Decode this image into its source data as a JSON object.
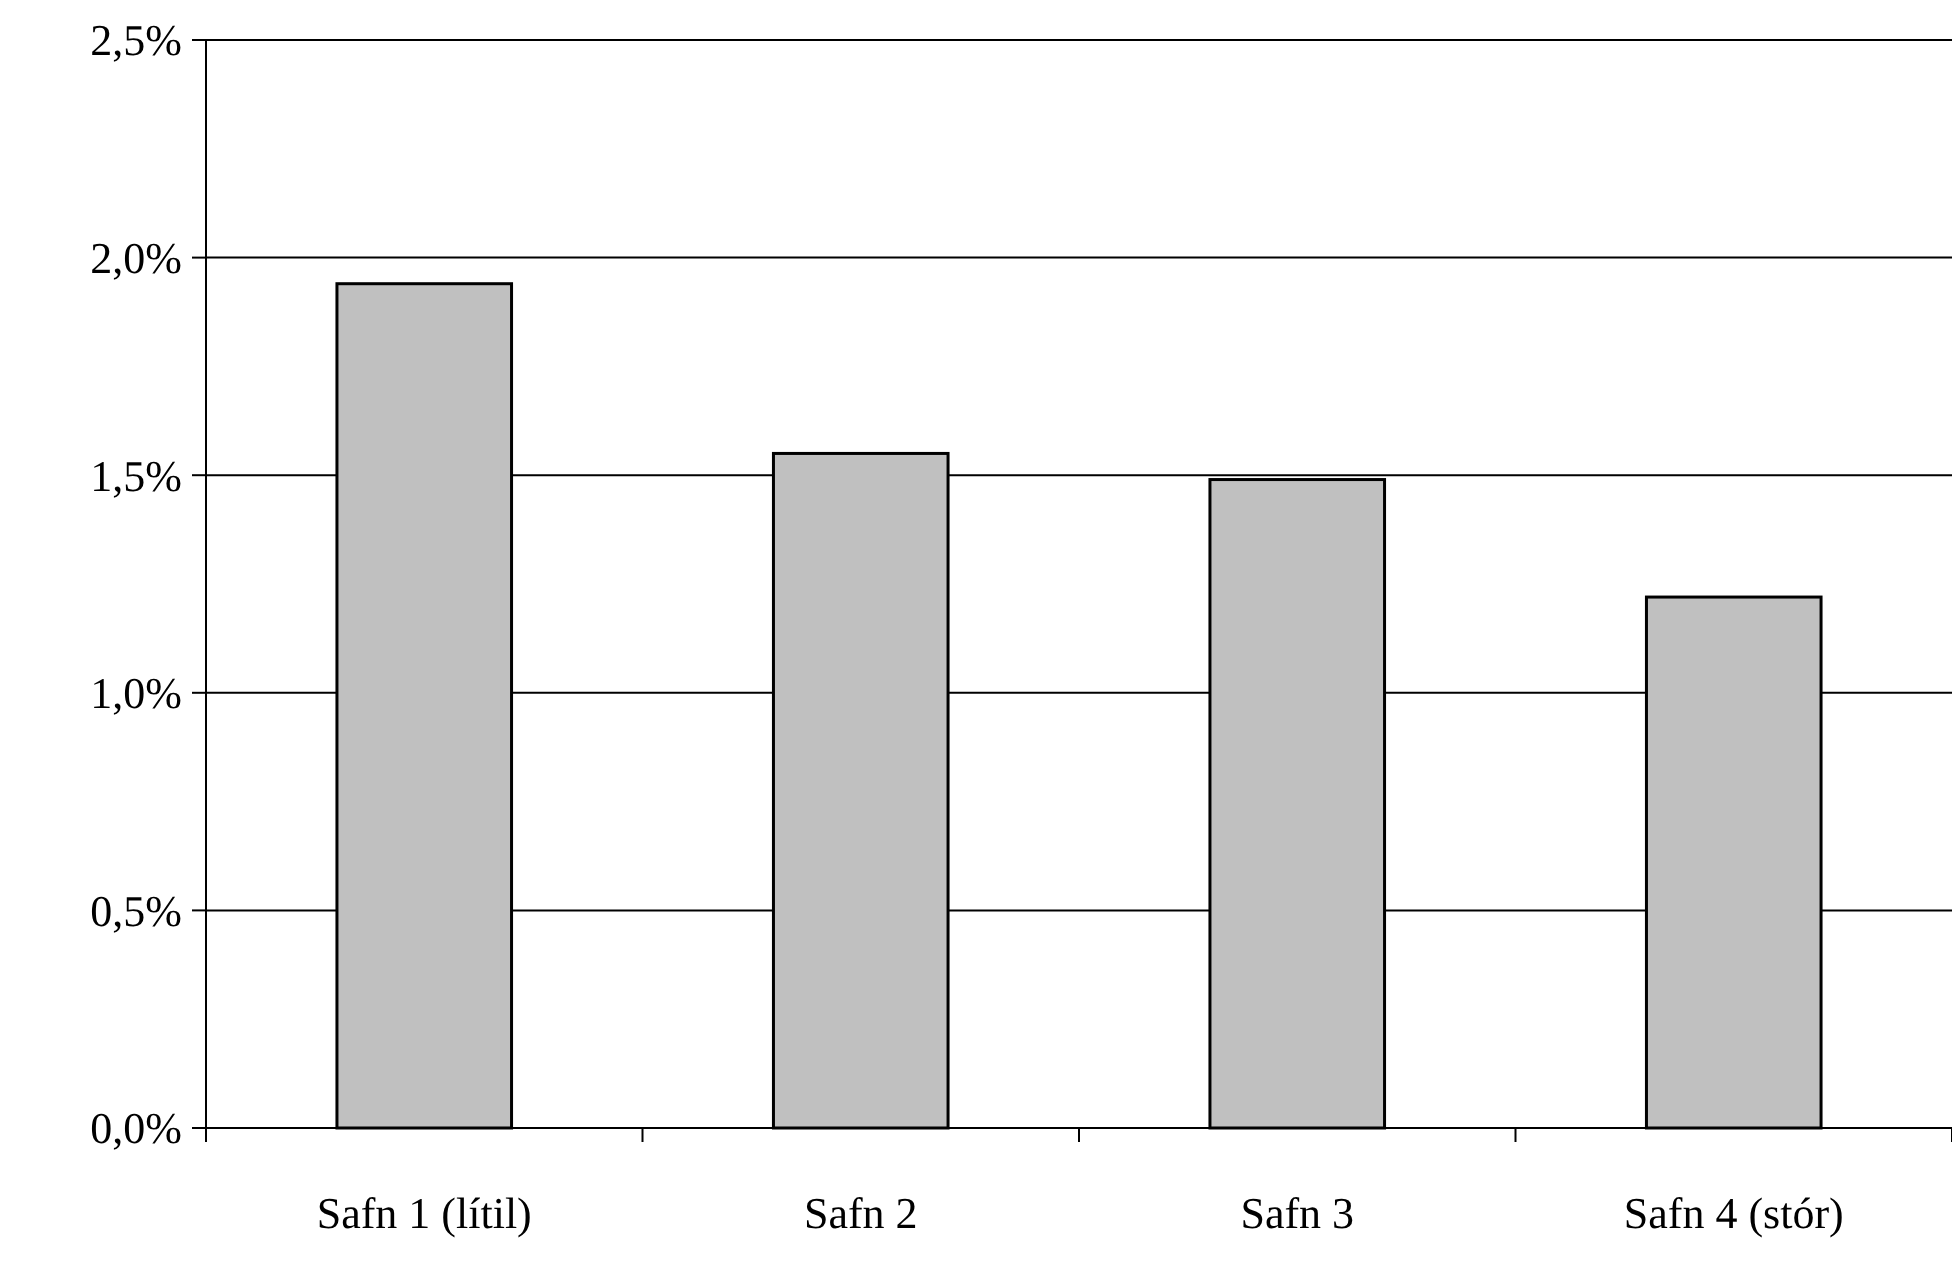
{
  "chart_data": {
    "type": "bar",
    "categories": [
      "Safn 1 (lítil)",
      "Safn 2",
      "Safn 3",
      "Safn 4 (stór)"
    ],
    "values": [
      1.94,
      1.55,
      1.49,
      1.22
    ],
    "color": "#c0c0c0",
    "ylim": [
      0,
      2.5
    ],
    "yticks": [
      {
        "value": 0,
        "label": "0,0%"
      },
      {
        "value": 0.5,
        "label": "0,5%"
      },
      {
        "value": 1,
        "label": "1,0%"
      },
      {
        "value": 1.5,
        "label": "1,5%"
      },
      {
        "value": 2,
        "label": "2,0%"
      },
      {
        "value": 2.5,
        "label": "2,5%"
      }
    ],
    "grid": "y"
  }
}
